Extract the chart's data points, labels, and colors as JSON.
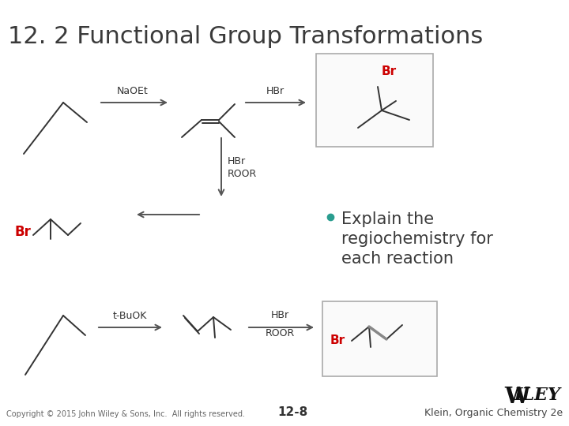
{
  "title": "12. 2 Functional Group Transformations",
  "background": "#ffffff",
  "title_color": "#3a3a3a",
  "title_fontsize": 22,
  "bullet_text_1": "Explain the",
  "bullet_text_2": "regiochemistry for",
  "bullet_text_3": "each reaction",
  "bullet_color": "#3a3a3a",
  "bullet_fontsize": 15,
  "bullet_dot_color": "#2a9d8f",
  "footer_left": "Copyright © 2015 John Wiley & Sons, Inc.  All rights reserved.",
  "footer_center": "12-8",
  "footer_right": "Klein, Organic Chemistry 2e",
  "wiley_text": "WILEY",
  "br_color": "#cc0000",
  "arrow_color": "#555555",
  "line_color": "#333333",
  "box_edge_color": "#aaaaaa",
  "box_face_color": "#fafafa"
}
